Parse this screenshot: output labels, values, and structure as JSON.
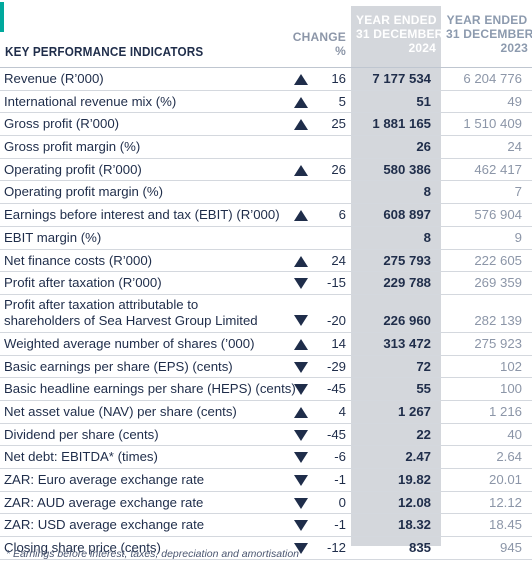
{
  "header": {
    "title": "KEY PERFORMANCE INDICATORS",
    "change_line1": "CHANGE",
    "change_line2": "%",
    "current_line1": "YEAR ENDED",
    "current_line2": "31 DECEMBER",
    "current_line3": "2024",
    "prior_line1": "YEAR ENDED",
    "prior_line2": "31 DECEMBER",
    "prior_line3": "2023"
  },
  "colors": {
    "accent": "#00a99d",
    "navy": "#1f2d4a",
    "highlight_column": "#d4d7dc",
    "muted": "#8c96a8"
  },
  "rows": [
    {
      "label": "Revenue (R’000)",
      "direction": "up",
      "change": "16",
      "current": "7 177 534",
      "prior": "6 204 776"
    },
    {
      "label": "International revenue mix (%)",
      "direction": "up",
      "change": "5",
      "current": "51",
      "prior": "49"
    },
    {
      "label": "Gross profit (R’000)",
      "direction": "up",
      "change": "25",
      "current": "1 881 165",
      "prior": "1 510 409"
    },
    {
      "label": "Gross profit margin (%)",
      "direction": "",
      "change": "",
      "current": "26",
      "prior": "24"
    },
    {
      "label": "Operating profit (R’000)",
      "direction": "up",
      "change": "26",
      "current": "580 386",
      "prior": "462 417"
    },
    {
      "label": "Operating profit margin (%)",
      "direction": "",
      "change": "",
      "current": "8",
      "prior": "7"
    },
    {
      "label": "Earnings before interest and tax (EBIT) (R’000)",
      "direction": "up",
      "change": "6",
      "current": "608 897",
      "prior": "576 904"
    },
    {
      "label": "EBIT margin (%)",
      "direction": "",
      "change": "",
      "current": "8",
      "prior": "9"
    },
    {
      "label": "Net finance costs (R’000)",
      "direction": "up",
      "change": "24",
      "current": "275 793",
      "prior": "222 605"
    },
    {
      "label": "Profit after taxation (R’000)",
      "direction": "down",
      "change": "-15",
      "current": "229 788",
      "prior": "269 359"
    },
    {
      "label": "Profit after taxation attributable to",
      "label2": "shareholders of Sea Harvest Group Limited",
      "direction": "down",
      "change": "-20",
      "current": "226 960",
      "prior": "282 139"
    },
    {
      "label": "Weighted average number of shares (’000)",
      "direction": "up",
      "change": "14",
      "current": "313 472",
      "prior": "275 923"
    },
    {
      "label": "Basic earnings per share (EPS) (cents)",
      "direction": "down",
      "change": "-29",
      "current": "72",
      "prior": "102"
    },
    {
      "label": "Basic headline earnings per share (HEPS) (cents)",
      "direction": "down",
      "change": "-45",
      "current": "55",
      "prior": "100"
    },
    {
      "label": "Net asset value (NAV) per share (cents)",
      "direction": "up",
      "change": "4",
      "current": "1 267",
      "prior": "1 216"
    },
    {
      "label": "Dividend per share (cents)",
      "direction": "down",
      "change": "-45",
      "current": "22",
      "prior": "40"
    },
    {
      "label": "Net debt: EBITDA* (times)",
      "direction": "down",
      "change": "-6",
      "current": "2.47",
      "prior": "2.64"
    },
    {
      "label": "ZAR: Euro average exchange rate",
      "direction": "down",
      "change": "-1",
      "current": "19.82",
      "prior": "20.01"
    },
    {
      "label": "ZAR: AUD average exchange rate",
      "direction": "down",
      "change": "0",
      "current": "12.08",
      "prior": "12.12"
    },
    {
      "label": "ZAR: USD average exchange rate",
      "direction": "down",
      "change": "-1",
      "current": "18.32",
      "prior": "18.45"
    },
    {
      "label": "Closing share price (cents)",
      "direction": "down",
      "change": "-12",
      "current": "835",
      "prior": "945"
    }
  ],
  "footnote": "*  Earnings before interest, taxes, depreciation and amortisation"
}
